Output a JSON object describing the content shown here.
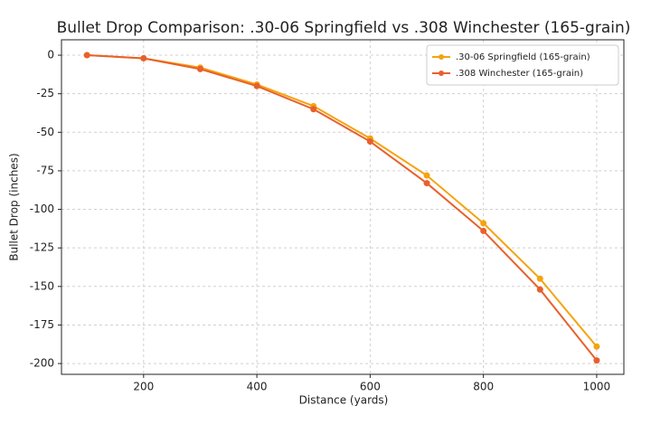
{
  "chart_data": {
    "type": "line",
    "title": "Bullet Drop Comparison: .30-06 Springfield vs .308 Winchester (165-grain)",
    "x_label": "Distance (yards)",
    "y_label": "Bullet Drop (inches)",
    "x": [
      100,
      200,
      300,
      400,
      500,
      600,
      700,
      800,
      900,
      1000
    ],
    "series": [
      {
        "name": ".30-06 Springfield (165-grain)",
        "color": "#f5a30f",
        "values": [
          0,
          -2,
          -8,
          -19,
          -33,
          -54,
          -78,
          -109,
          -145,
          -189
        ]
      },
      {
        "name": ".308 Winchester (165-grain)",
        "color": "#e8602c",
        "values": [
          0,
          -2,
          -9,
          -20,
          -35,
          -56,
          -83,
          -114,
          -152,
          -198
        ]
      }
    ],
    "xlim": [
      55,
      1048
    ],
    "xticks": [
      200,
      400,
      600,
      800,
      1000
    ],
    "ylim": [
      -207,
      10
    ],
    "yticks": [
      0,
      -25,
      -50,
      -75,
      -100,
      -125,
      -150,
      -175,
      -200
    ],
    "grid": true,
    "legend": "upper right"
  }
}
